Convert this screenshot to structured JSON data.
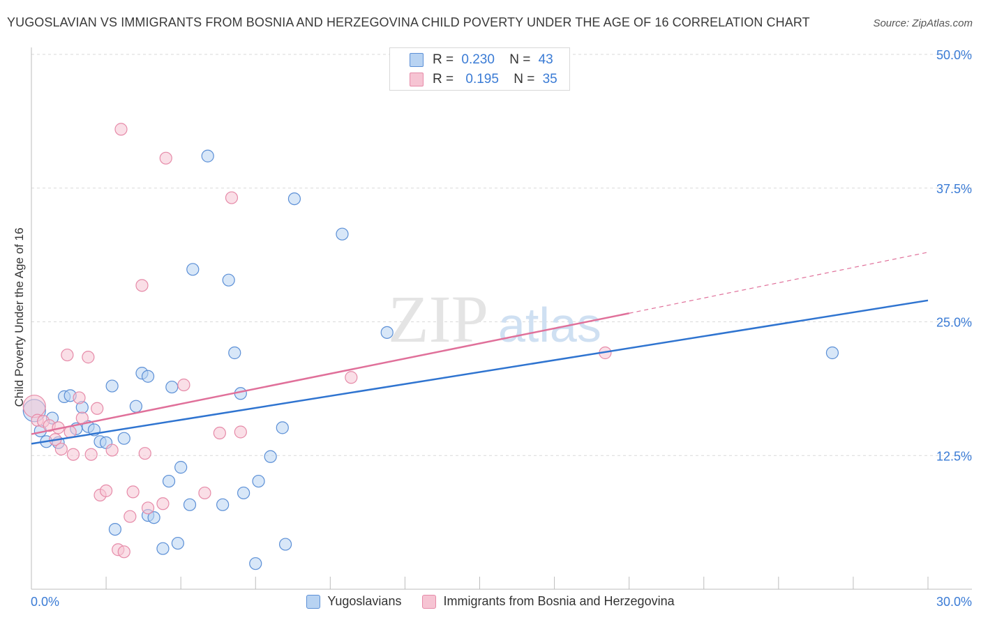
{
  "title": "YUGOSLAVIAN VS IMMIGRANTS FROM BOSNIA AND HERZEGOVINA CHILD POVERTY UNDER THE AGE OF 16 CORRELATION CHART",
  "source": "Source: ZipAtlas.com",
  "watermark": {
    "zip": "ZIP",
    "atlas": "atlas"
  },
  "colors": {
    "blue_fill": "#b8d3f2",
    "blue_stroke": "#5b8fd6",
    "blue_line": "#2f74d0",
    "pink_fill": "#f6c4d3",
    "pink_stroke": "#e68aa8",
    "pink_line": "#e0709a",
    "axis_label": "#3a7bd5",
    "grid": "#d9d9d9"
  },
  "legend": {
    "rows": [
      {
        "r_label": "R =",
        "r_value": "0.230",
        "n_label": "N =",
        "n_value": "43",
        "series": "blue"
      },
      {
        "r_label": "R =",
        "r_value": "0.195",
        "n_label": "N =",
        "n_value": "35",
        "series": "pink"
      }
    ]
  },
  "bottom_legend": {
    "yugoslavians": "Yugoslavians",
    "bosnia": "Immigrants from Bosnia and Herzegovina"
  },
  "chart_data": {
    "type": "scatter",
    "title": "YUGOSLAVIAN VS IMMIGRANTS FROM BOSNIA AND HERZEGOVINA CHILD POVERTY UNDER THE AGE OF 16 CORRELATION CHART",
    "xlabel": "",
    "ylabel": "Child Poverty Under the Age of 16",
    "xlim": [
      0,
      30
    ],
    "ylim": [
      0,
      50
    ],
    "x_tick_labels": [
      "0.0%",
      "30.0%"
    ],
    "y_tick_values": [
      12.5,
      25.0,
      37.5,
      50.0
    ],
    "y_tick_labels": [
      "12.5%",
      "25.0%",
      "37.5%",
      "50.0%"
    ],
    "series": [
      {
        "name": "Yugoslavians",
        "color": "blue",
        "points": [
          [
            0.1,
            16.7
          ],
          [
            0.3,
            14.8
          ],
          [
            0.5,
            13.8
          ],
          [
            0.7,
            16.0
          ],
          [
            0.9,
            13.7
          ],
          [
            1.1,
            18.0
          ],
          [
            1.3,
            18.1
          ],
          [
            1.5,
            15.0
          ],
          [
            1.7,
            17.0
          ],
          [
            1.9,
            15.2
          ],
          [
            2.1,
            14.9
          ],
          [
            2.3,
            13.8
          ],
          [
            2.5,
            13.7
          ],
          [
            2.7,
            19.0
          ],
          [
            3.1,
            14.1
          ],
          [
            3.5,
            17.1
          ],
          [
            3.7,
            20.2
          ],
          [
            3.9,
            19.9
          ],
          [
            2.8,
            5.6
          ],
          [
            3.9,
            6.9
          ],
          [
            4.1,
            6.7
          ],
          [
            4.4,
            3.8
          ],
          [
            4.6,
            10.1
          ],
          [
            4.7,
            18.9
          ],
          [
            4.9,
            4.3
          ],
          [
            5.0,
            11.4
          ],
          [
            5.3,
            7.9
          ],
          [
            5.4,
            29.9
          ],
          [
            5.9,
            40.5
          ],
          [
            6.4,
            7.9
          ],
          [
            6.6,
            28.9
          ],
          [
            6.8,
            22.1
          ],
          [
            7.0,
            18.3
          ],
          [
            7.1,
            9.0
          ],
          [
            7.5,
            2.4
          ],
          [
            7.6,
            10.1
          ],
          [
            8.0,
            12.4
          ],
          [
            8.4,
            15.1
          ],
          [
            8.5,
            4.2
          ],
          [
            8.8,
            36.5
          ],
          [
            10.4,
            33.2
          ],
          [
            11.9,
            24.0
          ],
          [
            26.8,
            22.1
          ]
        ],
        "trend": {
          "x": [
            0,
            30
          ],
          "y": [
            13.6,
            27.0
          ]
        }
      },
      {
        "name": "Immigrants from Bosnia and Herzegovina",
        "color": "pink",
        "points": [
          [
            0.1,
            17.1
          ],
          [
            0.2,
            15.8
          ],
          [
            0.4,
            15.7
          ],
          [
            0.6,
            15.3
          ],
          [
            0.8,
            14.0
          ],
          [
            0.9,
            15.1
          ],
          [
            1.0,
            13.1
          ],
          [
            1.2,
            21.9
          ],
          [
            1.3,
            14.7
          ],
          [
            1.4,
            12.6
          ],
          [
            1.6,
            17.9
          ],
          [
            1.7,
            16.0
          ],
          [
            1.9,
            21.7
          ],
          [
            2.0,
            12.6
          ],
          [
            2.2,
            16.9
          ],
          [
            2.3,
            8.8
          ],
          [
            2.5,
            9.2
          ],
          [
            2.7,
            13.0
          ],
          [
            2.9,
            3.7
          ],
          [
            3.0,
            43.0
          ],
          [
            3.1,
            3.5
          ],
          [
            3.3,
            6.8
          ],
          [
            3.4,
            9.1
          ],
          [
            3.7,
            28.4
          ],
          [
            3.8,
            12.7
          ],
          [
            3.9,
            7.6
          ],
          [
            4.4,
            8.0
          ],
          [
            4.5,
            40.3
          ],
          [
            5.1,
            19.1
          ],
          [
            5.8,
            9.0
          ],
          [
            6.3,
            14.6
          ],
          [
            6.7,
            36.6
          ],
          [
            7.0,
            14.7
          ],
          [
            10.7,
            19.8
          ],
          [
            19.2,
            22.1
          ]
        ],
        "trend": {
          "x": [
            0,
            20
          ],
          "y": [
            14.5,
            25.8
          ]
        },
        "trend_dashed_extension": {
          "x": [
            20,
            30
          ],
          "y": [
            25.8,
            31.5
          ]
        }
      }
    ]
  }
}
